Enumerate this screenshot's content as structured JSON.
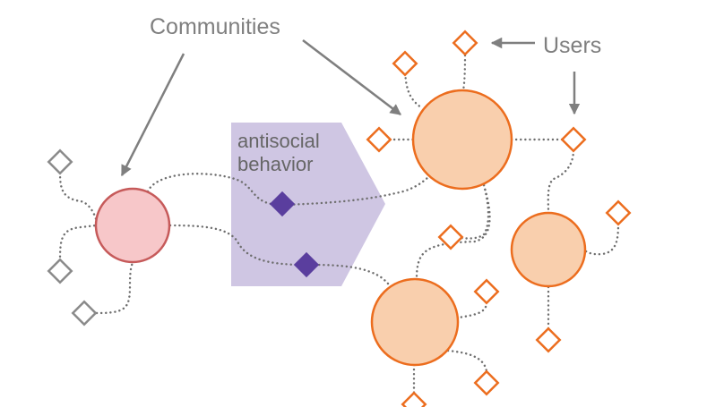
{
  "labels": {
    "communities": "Communities",
    "users": "Users",
    "antisocial_line1": "antisocial",
    "antisocial_line2": "behavior"
  },
  "colors": {
    "community_orange_fill": "#f9cfad",
    "community_orange_stroke": "#ec6d1e",
    "community_pink_fill": "#f7c7c9",
    "community_pink_stroke": "#c65a5a",
    "user_orange": "#ec6d1e",
    "user_gray": "#8a8a8a",
    "antisocial_user": "#5a3e9e",
    "antisocial_region": "#cfc6e3",
    "connector": "#6e6e6e",
    "label_text": "#7f7f7f"
  },
  "icons": {
    "community": "circle-node",
    "user": "diamond-node",
    "antisocial_user": "filled-diamond-node",
    "antisocial_region": "pentagon-arrow-shape"
  }
}
